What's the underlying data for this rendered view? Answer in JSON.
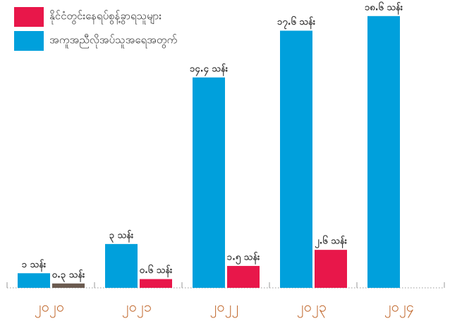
{
  "chart_data": {
    "type": "bar",
    "categories": [
      "၂၀၂၀",
      "၂၀၂၁",
      "၂၀၂၂",
      "၂၀၂၃",
      "၂၀၂၄"
    ],
    "series": [
      {
        "name": "နိုင်ငံတွင်းနေရပ်စွန့်ခွာရသူများ",
        "color": "#e8174a",
        "colors": [
          "#6b5b50",
          "#e8174a",
          "#e8174a",
          "#e8174a",
          null
        ],
        "values": [
          0.3,
          0.6,
          1.5,
          2.6,
          null
        ],
        "value_labels": [
          "၀.၃ သန်း",
          "၀.၆ သန်း",
          "၁.၅ သန်း",
          "၂.၆ သန်း",
          null
        ]
      },
      {
        "name": "အကူအညီလိုအပ်သူအရေအတွက်",
        "color": "#00a0dc",
        "values": [
          1,
          3,
          14.4,
          17.6,
          18.6
        ],
        "value_labels": [
          "၁ သန်း",
          "၃ သန်း",
          "၁၄.၄ သန်း",
          "၁၇.၆ သန်း",
          "၁၈.၆ သန်း"
        ]
      }
    ],
    "ylim": [
      0,
      19.7
    ],
    "legend": "top-left"
  }
}
